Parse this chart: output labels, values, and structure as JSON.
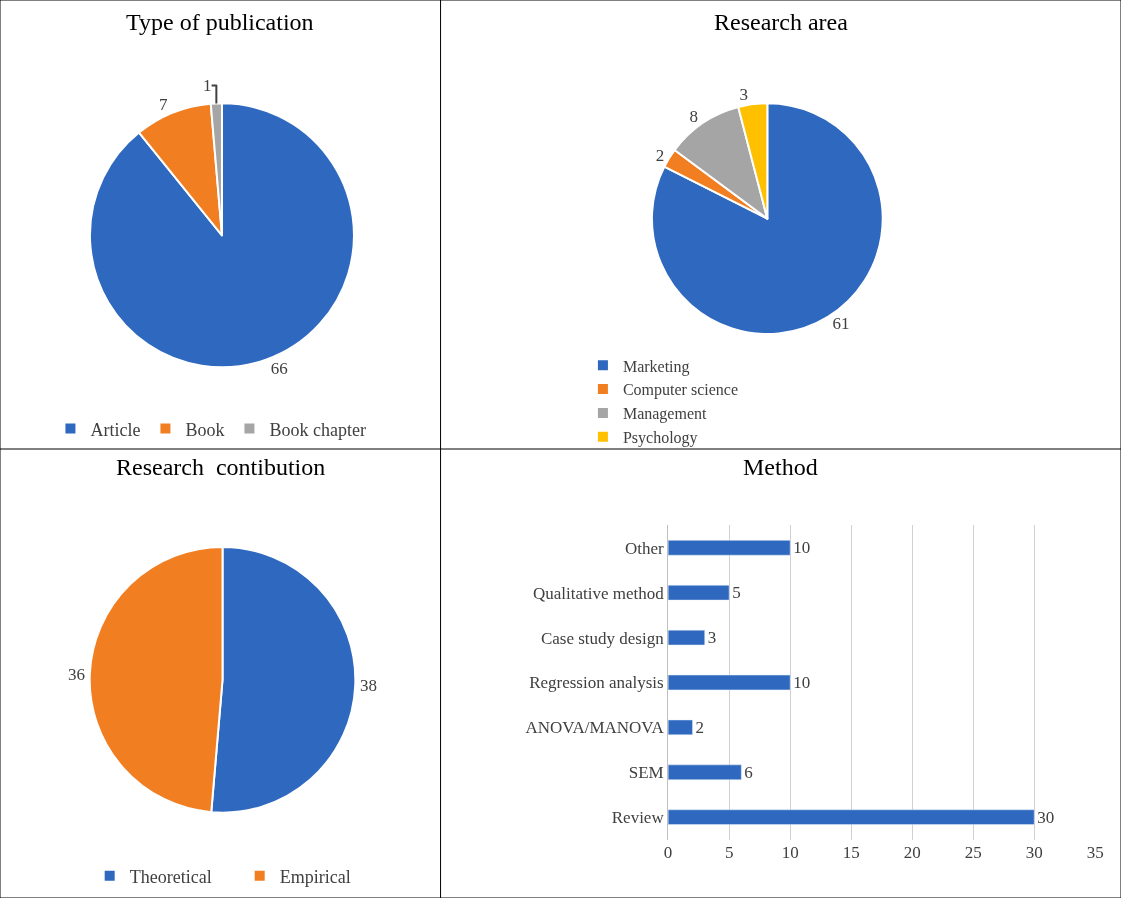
{
  "chart_data": [
    {
      "type": "pie",
      "title": "Type of publication",
      "categories": [
        "Article",
        "Book",
        "Book chapter"
      ],
      "values": [
        66,
        7,
        1
      ],
      "colors": [
        "#2e68bf",
        "#f27e22",
        "#a5a5a5"
      ],
      "data_labels": true,
      "legend": "bottom"
    },
    {
      "type": "pie",
      "title": "Research area",
      "categories": [
        "Marketing",
        "Computer science",
        "Management",
        "Psychology"
      ],
      "values": [
        61,
        2,
        8,
        3
      ],
      "colors": [
        "#2e68bf",
        "#f27e22",
        "#a5a5a5",
        "#ffc000"
      ],
      "data_labels": true,
      "legend": "bottom"
    },
    {
      "type": "pie",
      "title": "Research  contibution",
      "categories": [
        "Theoretical",
        "Empirical"
      ],
      "values": [
        38,
        36
      ],
      "colors": [
        "#2e68bf",
        "#f27e22"
      ],
      "data_labels": true,
      "legend": "bottom"
    },
    {
      "type": "bar",
      "orientation": "horizontal",
      "title": "Method",
      "categories": [
        "Other",
        "Qualitative method",
        "Case study design",
        "Regression analysis",
        "ANOVA/MANOVA",
        "SEM",
        "Review"
      ],
      "values": [
        10,
        5,
        3,
        10,
        2,
        6,
        30
      ],
      "color": "#2e68bf",
      "xlim": [
        0,
        35
      ],
      "xticks": [
        0,
        5,
        10,
        15,
        20,
        25,
        30,
        35
      ],
      "grid": "x",
      "data_labels": true
    }
  ]
}
